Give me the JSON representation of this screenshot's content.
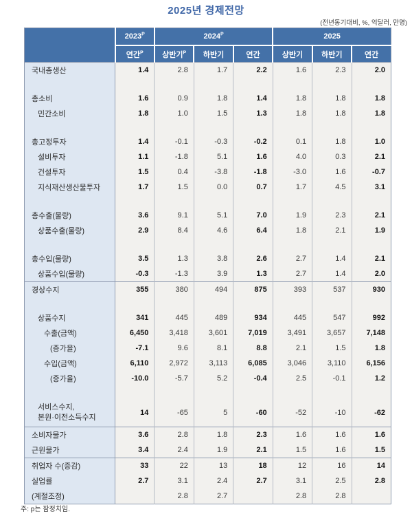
{
  "title": "2025년 경제전망",
  "units_note": "(전년동기대비, %, 억달러, 만명)",
  "footnote": "주: p는 잠정치임.",
  "colors": {
    "header_bg": "#4471a8",
    "label_bg": "#dee7f2",
    "cell_bg": "#f2f1ee",
    "title_color": "#4168a8",
    "strong_border": "#8f9bb0",
    "light_border": "#b4bac4"
  },
  "table": {
    "label_col_width": 132,
    "col_groups": [
      {
        "label": "2023",
        "sup": "P",
        "span": 1
      },
      {
        "label": "2024",
        "sup": "P",
        "span": 3
      },
      {
        "label": "2025",
        "sup": "",
        "span": 3
      }
    ],
    "sub_headers": [
      {
        "label": "연간",
        "sup": "P"
      },
      {
        "label": "상반기",
        "sup": "P"
      },
      {
        "label": "하반기",
        "sup": ""
      },
      {
        "label": "연간",
        "sup": ""
      },
      {
        "label": "상반기",
        "sup": ""
      },
      {
        "label": "하반기",
        "sup": ""
      },
      {
        "label": "연간",
        "sup": ""
      }
    ],
    "rows": [
      {
        "label": "국내총생산",
        "indent": 0,
        "values": [
          "1.4",
          "2.8",
          "1.7",
          "2.2",
          "1.6",
          "2.3",
          "2.0"
        ]
      },
      {
        "type": "spacer"
      },
      {
        "label": "총소비",
        "indent": 0,
        "values": [
          "1.6",
          "0.9",
          "1.8",
          "1.4",
          "1.8",
          "1.8",
          "1.8"
        ]
      },
      {
        "label": "민간소비",
        "indent": 1,
        "values": [
          "1.8",
          "1.0",
          "1.5",
          "1.3",
          "1.8",
          "1.8",
          "1.8"
        ]
      },
      {
        "type": "spacer"
      },
      {
        "label": "총고정투자",
        "indent": 0,
        "values": [
          "1.4",
          "-0.1",
          "-0.3",
          "-0.2",
          "0.1",
          "1.8",
          "1.0"
        ]
      },
      {
        "label": "설비투자",
        "indent": 1,
        "values": [
          "1.1",
          "-1.8",
          "5.1",
          "1.6",
          "4.0",
          "0.3",
          "2.1"
        ]
      },
      {
        "label": "건설투자",
        "indent": 1,
        "values": [
          "1.5",
          "0.4",
          "-3.8",
          "-1.8",
          "-3.0",
          "1.6",
          "-0.7"
        ]
      },
      {
        "label": "지식재산생산물투자",
        "indent": 1,
        "values": [
          "1.7",
          "1.5",
          "0.0",
          "0.7",
          "1.7",
          "4.5",
          "3.1"
        ]
      },
      {
        "type": "spacer"
      },
      {
        "label": "총수출(물량)",
        "indent": 0,
        "values": [
          "3.6",
          "9.1",
          "5.1",
          "7.0",
          "1.9",
          "2.3",
          "2.1"
        ]
      },
      {
        "label": "상품수출(물량)",
        "indent": 1,
        "values": [
          "2.9",
          "8.4",
          "4.6",
          "6.4",
          "1.8",
          "2.1",
          "1.9"
        ]
      },
      {
        "type": "spacer"
      },
      {
        "label": "총수입(물량)",
        "indent": 0,
        "values": [
          "3.5",
          "1.3",
          "3.8",
          "2.6",
          "2.7",
          "1.4",
          "2.1"
        ]
      },
      {
        "label": "상품수입(물량)",
        "indent": 1,
        "values": [
          "-0.3",
          "-1.3",
          "3.9",
          "1.3",
          "2.7",
          "1.4",
          "2.0"
        ]
      },
      {
        "label": "경상수지",
        "indent": 0,
        "border_top": true,
        "values": [
          "355",
          "380",
          "494",
          "875",
          "393",
          "537",
          "930"
        ]
      },
      {
        "type": "spacer"
      },
      {
        "label": "상품수지",
        "indent": 1,
        "values": [
          "341",
          "445",
          "489",
          "934",
          "445",
          "547",
          "992"
        ]
      },
      {
        "label": "수출(금액)",
        "indent": 2,
        "values": [
          "6,450",
          "3,418",
          "3,601",
          "7,019",
          "3,491",
          "3,657",
          "7,148"
        ]
      },
      {
        "label": "(증가율)",
        "indent": 3,
        "values": [
          "-7.1",
          "9.6",
          "8.1",
          "8.8",
          "2.1",
          "1.5",
          "1.8"
        ]
      },
      {
        "label": "수입(금액)",
        "indent": 2,
        "values": [
          "6,110",
          "2,972",
          "3,113",
          "6,085",
          "3,046",
          "3,110",
          "6,156"
        ]
      },
      {
        "label": "(증가율)",
        "indent": 3,
        "values": [
          "-10.0",
          "-5.7",
          "5.2",
          "-0.4",
          "2.5",
          "-0.1",
          "1.2"
        ]
      },
      {
        "type": "spacer"
      },
      {
        "label": "서비스수지,",
        "label2": "본원·이전소득수지",
        "indent": 1,
        "values": [
          "14",
          "-65",
          "5",
          "-60",
          "-52",
          "-10",
          "-62"
        ]
      },
      {
        "label": "소비자물가",
        "indent": 0,
        "border_top": true,
        "values": [
          "3.6",
          "2.8",
          "1.8",
          "2.3",
          "1.6",
          "1.6",
          "1.6"
        ]
      },
      {
        "label": "근원물가",
        "indent": 0,
        "values": [
          "3.4",
          "2.4",
          "1.9",
          "2.1",
          "1.5",
          "1.6",
          "1.5"
        ]
      },
      {
        "label": "취업자 수(증감)",
        "indent": 0,
        "border_top": true,
        "values": [
          "33",
          "22",
          "13",
          "18",
          "12",
          "16",
          "14"
        ]
      },
      {
        "label": "실업률",
        "indent": 0,
        "values": [
          "2.7",
          "3.1",
          "2.4",
          "2.7",
          "3.1",
          "2.5",
          "2.8"
        ]
      },
      {
        "label": "(계절조정)",
        "indent": 0,
        "values": [
          "",
          "2.8",
          "2.7",
          "",
          "2.8",
          "2.8",
          ""
        ]
      }
    ]
  }
}
